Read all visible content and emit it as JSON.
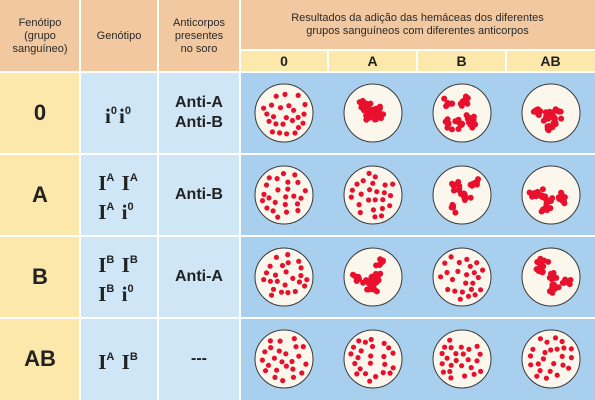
{
  "headers": {
    "phenotype": "Fenótipo\n(grupo\nsanguíneo)",
    "genotype": "Genótipo",
    "antibodies": "Anticorpos\npresentes\nno soro",
    "results": "Resultados da adição das hemáceas dos diferentes\ngrupos sanguíneos com diferentes anticorpos"
  },
  "columns": [
    "0",
    "A",
    "B",
    "AB"
  ],
  "rows": [
    {
      "phenotype": "0",
      "genotype": [
        [
          {
            "base": "i",
            "sup": "0"
          },
          {
            "base": "i",
            "sup": "0"
          }
        ]
      ],
      "antibodies": [
        "Anti-A",
        "Anti-B"
      ],
      "results": [
        "clear",
        "agglutinated",
        "agglutinated",
        "agglutinated"
      ]
    },
    {
      "phenotype": "A",
      "genotype": [
        [
          {
            "base": "I",
            "sup": "A"
          },
          {
            "base": "I",
            "sup": "A"
          }
        ],
        [
          {
            "base": "I",
            "sup": "A"
          },
          {
            "base": "i",
            "sup": "0"
          }
        ]
      ],
      "antibodies": [
        "Anti-B"
      ],
      "results": [
        "clear",
        "clear",
        "agglutinated",
        "agglutinated"
      ]
    },
    {
      "phenotype": "B",
      "genotype": [
        [
          {
            "base": "I",
            "sup": "B"
          },
          {
            "base": "I",
            "sup": "B"
          }
        ],
        [
          {
            "base": "I",
            "sup": "B"
          },
          {
            "base": "i",
            "sup": "0"
          }
        ]
      ],
      "antibodies": [
        "Anti-A"
      ],
      "results": [
        "clear",
        "agglutinated",
        "clear",
        "agglutinated"
      ]
    },
    {
      "phenotype": "AB",
      "genotype": [
        [
          {
            "base": "I",
            "sup": "A"
          },
          {
            "base": "I",
            "sup": "B"
          }
        ]
      ],
      "antibodies": [
        "---"
      ],
      "results": [
        "clear",
        "clear",
        "clear",
        "clear"
      ]
    }
  ],
  "colors": {
    "header": "#f2c8a0",
    "phenotype": "#fbe8aa",
    "info": "#cfe6f6",
    "results": "#a9cfee",
    "cell": "#e8112d",
    "dish": "#fbf7ec"
  }
}
